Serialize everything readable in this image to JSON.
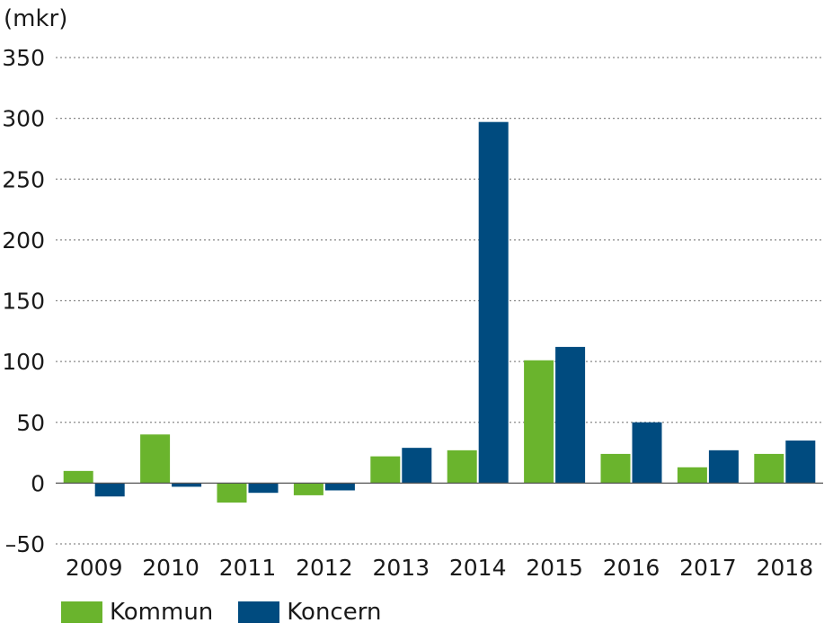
{
  "unit_label": "(mkr)",
  "colors": {
    "kommun": "#6ab42d",
    "koncern": "#004b7f",
    "grid": "#8a8a8a",
    "zero": "#555555"
  },
  "legend": {
    "kommun": "Kommun",
    "koncern": "Koncern"
  },
  "chart_data": {
    "type": "bar",
    "categories": [
      "2009",
      "2010",
      "2011",
      "2012",
      "2013",
      "2014",
      "2015",
      "2016",
      "2017",
      "2018"
    ],
    "series": [
      {
        "name": "Kommun",
        "values": [
          10,
          40,
          -16,
          -10,
          22,
          27,
          101,
          24,
          13,
          24
        ]
      },
      {
        "name": "Koncern",
        "values": [
          -11,
          -3,
          -8,
          -6,
          29,
          297,
          112,
          50,
          27,
          35
        ]
      }
    ],
    "yticks": [
      "350",
      "300",
      "250",
      "200",
      "150",
      "100",
      "50",
      "0",
      "–50"
    ],
    "ylabel": "(mkr)",
    "ylim": [
      -50,
      350
    ],
    "grid": true,
    "legend_position": "bottom-left"
  }
}
